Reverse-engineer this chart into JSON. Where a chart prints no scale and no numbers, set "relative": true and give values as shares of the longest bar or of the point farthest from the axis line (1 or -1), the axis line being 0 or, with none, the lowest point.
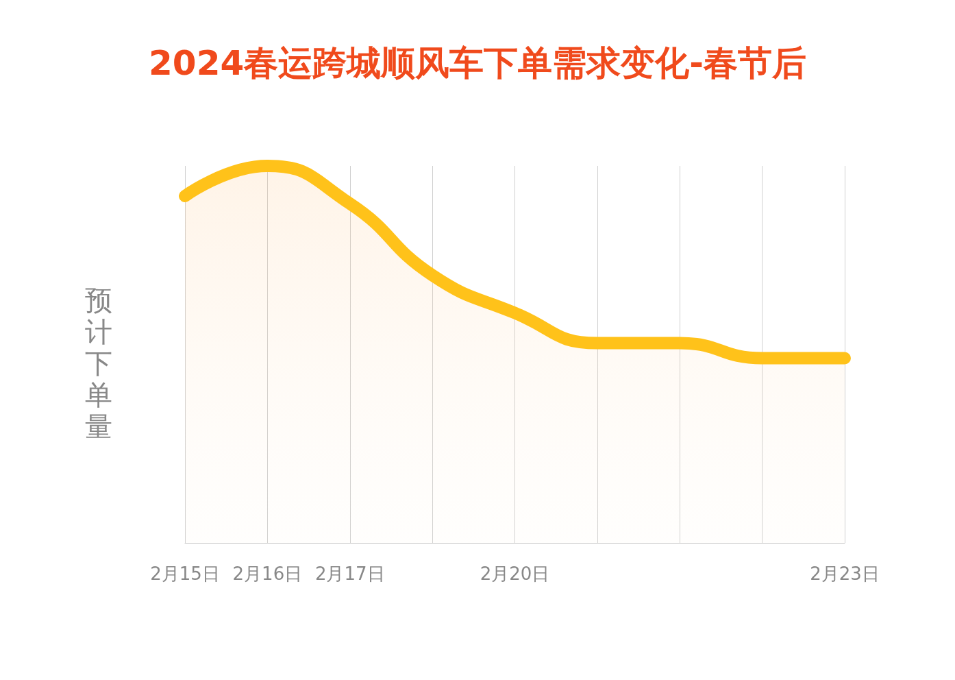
{
  "chart_data": {
    "type": "area",
    "title": "2024春运跨城顺风车下单需求变化-春节后",
    "ylabel": "预计下单量",
    "relative": true,
    "categories": [
      "2月15日",
      "2月16日",
      "2月17日",
      null,
      "2月20日",
      null,
      null,
      null,
      "2月23日"
    ],
    "series": [
      {
        "color": "#ffc21a",
        "values": [
          0.92,
          1,
          0.9,
          0.71,
          0.61,
          0.53,
          0.53,
          0.49,
          0.49
        ]
      }
    ],
    "grid": "x",
    "line_style": "solid"
  }
}
